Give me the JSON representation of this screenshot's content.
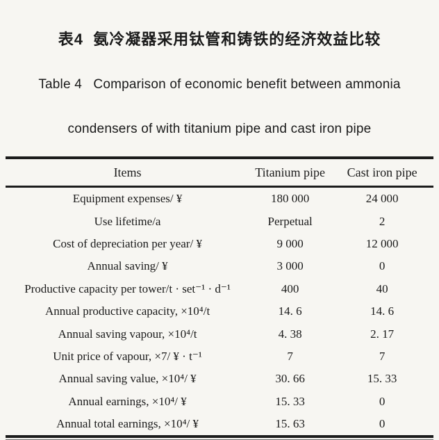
{
  "page": {
    "background_color": "#f7f6f2",
    "text_color": "#1a1a1a"
  },
  "title": {
    "chinese": "表4  氨冷凝器采用钛管和铸铁的经济效益比较",
    "english_line1": "Table 4   Comparison of economic benefit between ammonia",
    "english_line2": "condensers of with titanium pipe and cast iron pipe"
  },
  "table": {
    "columns": [
      {
        "label": "Items"
      },
      {
        "label": "Titanium pipe"
      },
      {
        "label": "Cast iron pipe"
      }
    ],
    "rows": [
      {
        "item": "Equipment expenses/ ¥",
        "titanium": "180 000",
        "cast_iron": "24 000"
      },
      {
        "item": "Use lifetime/a",
        "titanium": "Perpetual",
        "cast_iron": "2"
      },
      {
        "item": "Cost of depreciation per year/ ¥",
        "titanium": "9 000",
        "cast_iron": "12 000"
      },
      {
        "item": "Annual saving/ ¥",
        "titanium": "3 000",
        "cast_iron": "0"
      },
      {
        "item": "Productive capacity per tower/t · set⁻¹ · d⁻¹",
        "titanium": "400",
        "cast_iron": "40"
      },
      {
        "item": "Annual productive capacity, ×10⁴/t",
        "titanium": "14. 6",
        "cast_iron": "14. 6"
      },
      {
        "item": "Annual saving vapour, ×10⁴/t",
        "titanium": "4. 38",
        "cast_iron": "2. 17"
      },
      {
        "item": "Unit price of vapour, ×7/ ¥ · t⁻¹",
        "titanium": "7",
        "cast_iron": "7"
      },
      {
        "item": "Annual saving value, ×10⁴/ ¥",
        "titanium": "30. 66",
        "cast_iron": "15. 33"
      },
      {
        "item": "Annual earnings, ×10⁴/ ¥",
        "titanium": "15. 33",
        "cast_iron": "0"
      },
      {
        "item": "Annual total earnings, ×10⁴/ ¥",
        "titanium": "15. 63",
        "cast_iron": "0"
      }
    ]
  },
  "chart_data": {
    "type": "table",
    "title": "Table 4 Comparison of economic benefit between ammonia condensers of with titanium pipe and cast iron pipe",
    "title_zh": "表4 氨冷凝器采用钛管和铸铁的经济效益比较",
    "columns": [
      "Items",
      "Titanium pipe",
      "Cast iron pipe"
    ],
    "rows": [
      [
        "Equipment expenses/ ¥",
        "180 000",
        "24 000"
      ],
      [
        "Use lifetime/a",
        "Perpetual",
        "2"
      ],
      [
        "Cost of depreciation per year/ ¥",
        "9 000",
        "12 000"
      ],
      [
        "Annual saving/ ¥",
        "3 000",
        "0"
      ],
      [
        "Productive capacity per tower/t · set⁻¹ · d⁻¹",
        "400",
        "40"
      ],
      [
        "Annual productive capacity, ×10⁴/t",
        "14. 6",
        "14. 6"
      ],
      [
        "Annual saving vapour, ×10⁴/t",
        "4. 38",
        "2. 17"
      ],
      [
        "Unit price of vapour, ×7/ ¥ · t⁻¹",
        "7",
        "7"
      ],
      [
        "Annual saving value, ×10⁴/ ¥",
        "30. 66",
        "15. 33"
      ],
      [
        "Annual earnings, ×10⁴/ ¥",
        "15. 33",
        "0"
      ],
      [
        "Annual total earnings, ×10⁴/ ¥",
        "15. 63",
        "0"
      ]
    ]
  }
}
